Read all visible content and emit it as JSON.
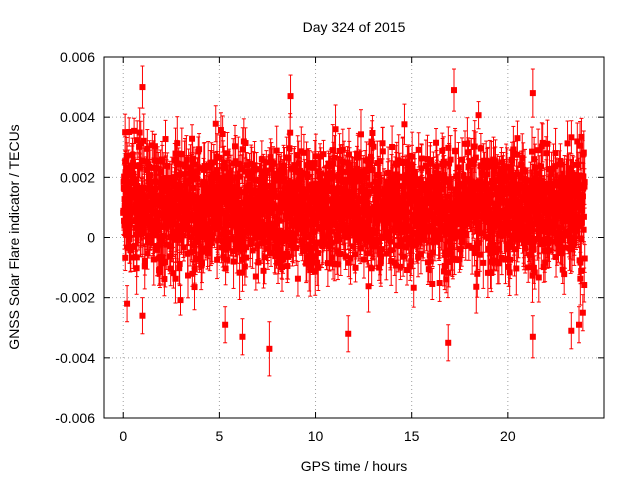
{
  "chart_data": {
    "type": "scatter",
    "title": "Day 324 of 2015",
    "xlabel": "GPS time / hours",
    "ylabel": "GNSS Solar Flare indicator / TECUs",
    "xlim": [
      -1,
      25
    ],
    "ylim": [
      -0.006,
      0.006
    ],
    "x_ticks": [
      0,
      5,
      10,
      15,
      20
    ],
    "x_tick_labels": [
      "0",
      "5",
      "10",
      "15",
      "20"
    ],
    "y_ticks": [
      -0.006,
      -0.004,
      -0.002,
      0,
      0.002,
      0.004,
      0.006
    ],
    "y_tick_labels": [
      "-0.006",
      "-0.004",
      "-0.002",
      "0",
      "0.002",
      "0.004",
      "0.006"
    ],
    "grid": true,
    "error_bars": true,
    "series_color": "#ff0000",
    "x_range": [
      0,
      24
    ],
    "y_band": [
      -0.0015,
      0.0035
    ],
    "sample_points": [
      {
        "x": 1.0,
        "y": 0.005,
        "err": 0.0007
      },
      {
        "x": 0.1,
        "y": 0.0035,
        "err": 0.0006
      },
      {
        "x": 0.2,
        "y": -0.0022,
        "err": 0.0006
      },
      {
        "x": 1.0,
        "y": -0.0026,
        "err": 0.0006
      },
      {
        "x": 5.3,
        "y": -0.0029,
        "err": 0.0006
      },
      {
        "x": 6.2,
        "y": -0.0033,
        "err": 0.0006
      },
      {
        "x": 7.6,
        "y": -0.0037,
        "err": 0.0009
      },
      {
        "x": 8.7,
        "y": 0.0047,
        "err": 0.0007
      },
      {
        "x": 11.7,
        "y": -0.0032,
        "err": 0.0006
      },
      {
        "x": 16.9,
        "y": -0.0035,
        "err": 0.0006
      },
      {
        "x": 17.2,
        "y": 0.0049,
        "err": 0.0007
      },
      {
        "x": 21.3,
        "y": 0.0048,
        "err": 0.0008
      },
      {
        "x": 21.3,
        "y": -0.0033,
        "err": 0.0007
      },
      {
        "x": 23.3,
        "y": -0.0031,
        "err": 0.0006
      },
      {
        "x": 23.7,
        "y": -0.0029,
        "err": 0.0006
      },
      {
        "x": 23.9,
        "y": -0.0025,
        "err": 0.0006
      }
    ]
  }
}
